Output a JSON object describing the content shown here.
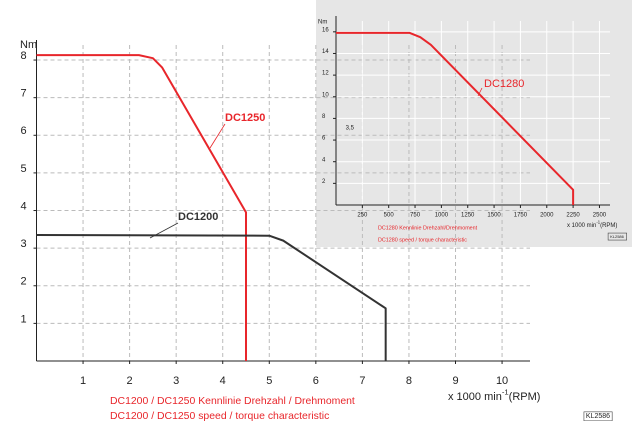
{
  "chart_data": [
    {
      "type": "line",
      "ylabel": "Nm",
      "xlabel": "x 1000 min",
      "xlabel_sup": "-1",
      "xlabel_unit": "(RPM)",
      "xlim": [
        0,
        10.6
      ],
      "ylim": [
        0,
        8.4
      ],
      "xticks": [
        1,
        2,
        3,
        4,
        5,
        6,
        7,
        8,
        9,
        10
      ],
      "yticks": [
        1,
        2,
        3,
        4,
        5,
        6,
        7,
        8
      ],
      "grid": true,
      "series": [
        {
          "name": "DC1250",
          "color": "#e8262b",
          "x": [
            0,
            2.2,
            2.5,
            2.7,
            4.5,
            4.5
          ],
          "values": [
            8.13,
            8.13,
            8.05,
            7.8,
            3.95,
            0
          ]
        },
        {
          "name": "DC1200",
          "color": "#333333",
          "x": [
            0,
            5,
            5.3,
            7.5,
            7.5
          ],
          "values": [
            3.35,
            3.33,
            3.2,
            1.4,
            0
          ]
        }
      ],
      "captions": [
        "DC1200 / DC1250 Kennlinie Drehzahl / Drehmoment",
        "DC1200 / DC1250 speed / torque characteristic"
      ],
      "code": "KL2586"
    },
    {
      "type": "line",
      "ylabel": "Nm",
      "xlabel": "x 1000 min",
      "xlabel_sup": "-1",
      "xlabel_unit": "(RPM)",
      "xlim": [
        0,
        2600
      ],
      "ylim": [
        0,
        17
      ],
      "xticks": [
        250,
        500,
        750,
        1000,
        1250,
        1500,
        1750,
        2000,
        2250,
        2500
      ],
      "yticks": [
        2,
        4,
        6,
        8,
        10,
        12,
        14,
        16
      ],
      "annotation": "3,5",
      "grid": true,
      "series": [
        {
          "name": "DC1280",
          "color": "#e8262b",
          "x": [
            0,
            700,
            800,
            900,
            2250,
            2250
          ],
          "values": [
            15.9,
            15.9,
            15.5,
            14.8,
            1.4,
            0
          ]
        }
      ],
      "captions": [
        "DC1280 Kennlinie Drehzahl/Drehmoment",
        "DC1280 speed / torque characteristic"
      ],
      "code": "KL2586"
    }
  ]
}
